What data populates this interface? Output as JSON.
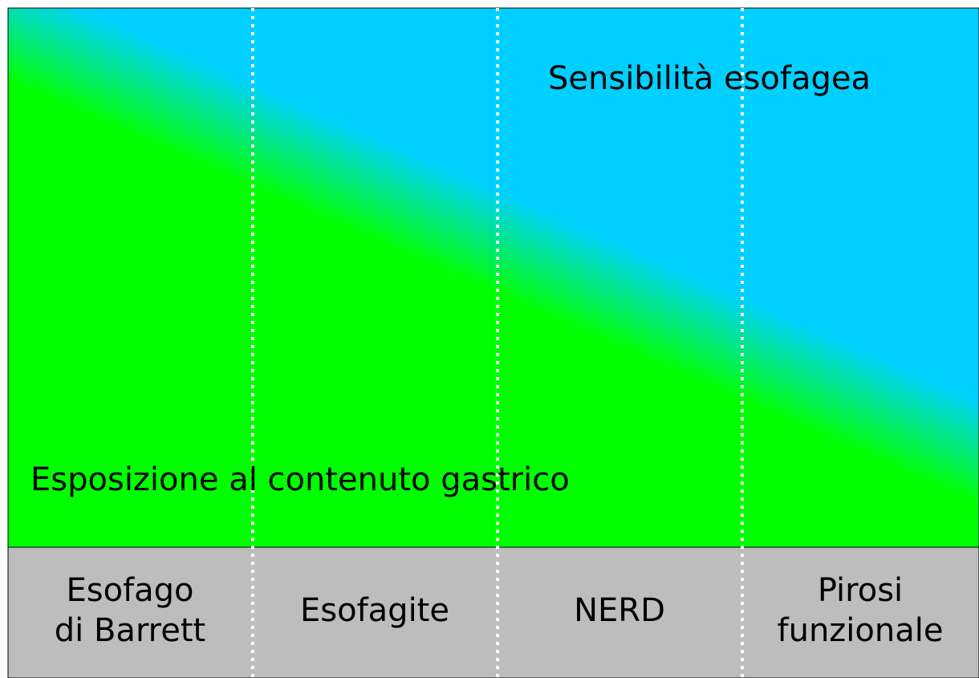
{
  "top_label": "Sensibilità esofagea",
  "bottom_label": "Esposizione al contenuto gastrico",
  "columns": [
    {
      "lines": [
        "Esofago",
        "di Barrett"
      ]
    },
    {
      "lines": [
        "Esofagite"
      ]
    },
    {
      "lines": [
        "NERD"
      ]
    },
    {
      "lines": [
        "Pirosi",
        "funzionale"
      ]
    }
  ]
}
